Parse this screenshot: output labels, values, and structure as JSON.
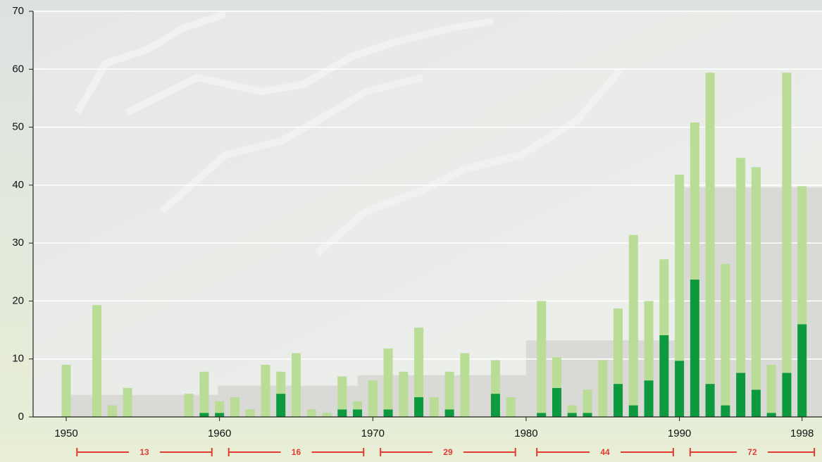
{
  "chart_data": {
    "type": "bar",
    "x": [
      1950,
      1951,
      1952,
      1953,
      1954,
      1955,
      1956,
      1957,
      1958,
      1959,
      1960,
      1961,
      1962,
      1963,
      1964,
      1965,
      1966,
      1967,
      1968,
      1969,
      1970,
      1971,
      1972,
      1973,
      1974,
      1975,
      1976,
      1977,
      1978,
      1979,
      1980,
      1981,
      1982,
      1983,
      1984,
      1985,
      1986,
      1987,
      1988,
      1989,
      1990,
      1991,
      1992,
      1993,
      1994,
      1995,
      1996,
      1997,
      1998
    ],
    "series": [
      {
        "color": "#0d9a3f",
        "values": [
          0,
          0,
          0,
          0,
          0,
          0,
          0,
          0,
          0,
          0.7,
          0.7,
          0,
          0,
          0,
          4,
          0,
          0,
          0,
          1.3,
          1.3,
          0,
          1.3,
          0,
          3.4,
          0,
          1.3,
          0,
          0,
          4,
          0,
          0,
          0.7,
          5,
          0.7,
          0.7,
          0,
          5.7,
          2,
          6.3,
          14.1,
          9.7,
          23.7,
          5.7,
          2,
          7.6,
          4.7,
          0.7,
          7.6,
          16
        ]
      },
      {
        "color": "#b9dc96",
        "values": [
          9,
          0,
          19.3,
          2,
          5,
          0,
          0,
          0,
          4,
          7.1,
          2,
          3.4,
          1.3,
          9,
          3.8,
          11,
          1.3,
          0.7,
          5.7,
          1.4,
          6.3,
          10.5,
          7.8,
          12,
          3.4,
          6.5,
          11,
          0,
          5.8,
          3.4,
          0,
          19.3,
          5.3,
          1.3,
          4,
          9.8,
          13,
          29.4,
          13.7,
          13.1,
          32.1,
          27.1,
          53.7,
          24.4,
          37.1,
          38.4,
          8.3,
          51.8,
          23.8
        ]
      }
    ],
    "steps": [
      {
        "x": [
          1950.3,
          1959.9
        ],
        "value": 3.8
      },
      {
        "x": [
          1959.9,
          1969
        ],
        "value": 5.4
      },
      {
        "x": [
          1969,
          1980
        ],
        "value": 7.2
      },
      {
        "x": [
          1980,
          1990
        ],
        "value": 13.2
      },
      {
        "x": [
          1990,
          1999.3
        ],
        "value": 39.6
      }
    ],
    "step_color": "#d9d9d5",
    "brackets": [
      {
        "x": [
          1950.7,
          1959.5
        ],
        "value": 13
      },
      {
        "x": [
          1960.6,
          1969.4
        ],
        "value": 16
      },
      {
        "x": [
          1970.5,
          1979.3
        ],
        "value": 29
      },
      {
        "x": [
          1980.7,
          1989.6
        ],
        "value": 44
      },
      {
        "x": [
          1990.7,
          1998.8
        ],
        "value": 72
      }
    ],
    "bracket_color": "#e03c31",
    "xlim": [
      1947.84,
      1999.3
    ],
    "xticks": [
      1950,
      1960,
      1970,
      1980,
      1990,
      1998
    ],
    "ylim": [
      0,
      70
    ],
    "yticks": [
      0,
      10,
      20,
      30,
      40,
      50,
      60,
      70
    ],
    "grid": true
  }
}
